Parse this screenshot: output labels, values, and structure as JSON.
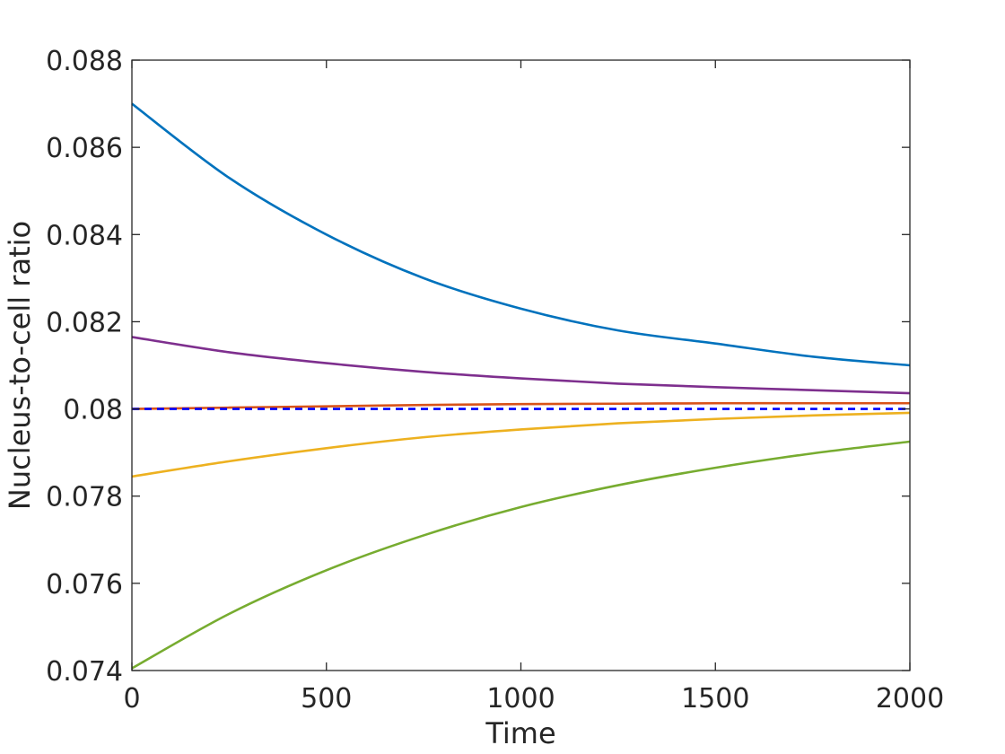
{
  "chart_data": {
    "type": "line",
    "title": "",
    "xlabel": "Time",
    "ylabel": "Nucleus-to-cell ratio",
    "xlim": [
      0,
      2000
    ],
    "ylim": [
      0.074,
      0.088
    ],
    "xticks": [
      0,
      500,
      1000,
      1500,
      2000
    ],
    "xtick_labels": [
      "0",
      "500",
      "1000",
      "1500",
      "2000"
    ],
    "yticks": [
      0.074,
      0.076,
      0.078,
      0.08,
      0.082,
      0.084,
      0.086,
      0.088
    ],
    "ytick_labels": [
      "0.074",
      "0.076",
      "0.078",
      "0.08",
      "0.082",
      "0.084",
      "0.086",
      "0.088"
    ],
    "grid": false,
    "x": [
      0,
      250,
      500,
      750,
      1000,
      1250,
      1500,
      1750,
      2000
    ],
    "series": [
      {
        "color": "#0072BD",
        "style": "solid",
        "values": [
          0.087,
          0.0853,
          0.084,
          0.083,
          0.0823,
          0.0818,
          0.0815,
          0.0812,
          0.081
        ]
      },
      {
        "color": "#7E2F8E",
        "style": "solid",
        "values": [
          0.08165,
          0.0813,
          0.08105,
          0.08085,
          0.0807,
          0.08058,
          0.0805,
          0.08043,
          0.08036
        ]
      },
      {
        "color": "#D95319",
        "style": "solid",
        "values": [
          0.08,
          0.08003,
          0.08006,
          0.08009,
          0.08011,
          0.08012,
          0.08013,
          0.08013,
          0.08013
        ]
      },
      {
        "color": "#0000FF",
        "style": "dashed",
        "values": [
          0.08,
          0.08,
          0.08,
          0.08,
          0.08,
          0.08,
          0.08,
          0.08,
          0.08
        ]
      },
      {
        "color": "#EDB120",
        "style": "solid",
        "values": [
          0.07845,
          0.0788,
          0.0791,
          0.07935,
          0.07953,
          0.07967,
          0.07977,
          0.07985,
          0.07991
        ]
      },
      {
        "color": "#77AC30",
        "style": "solid",
        "values": [
          0.07405,
          0.0753,
          0.0763,
          0.0771,
          0.07775,
          0.07825,
          0.07865,
          0.07898,
          0.07925
        ]
      }
    ]
  }
}
